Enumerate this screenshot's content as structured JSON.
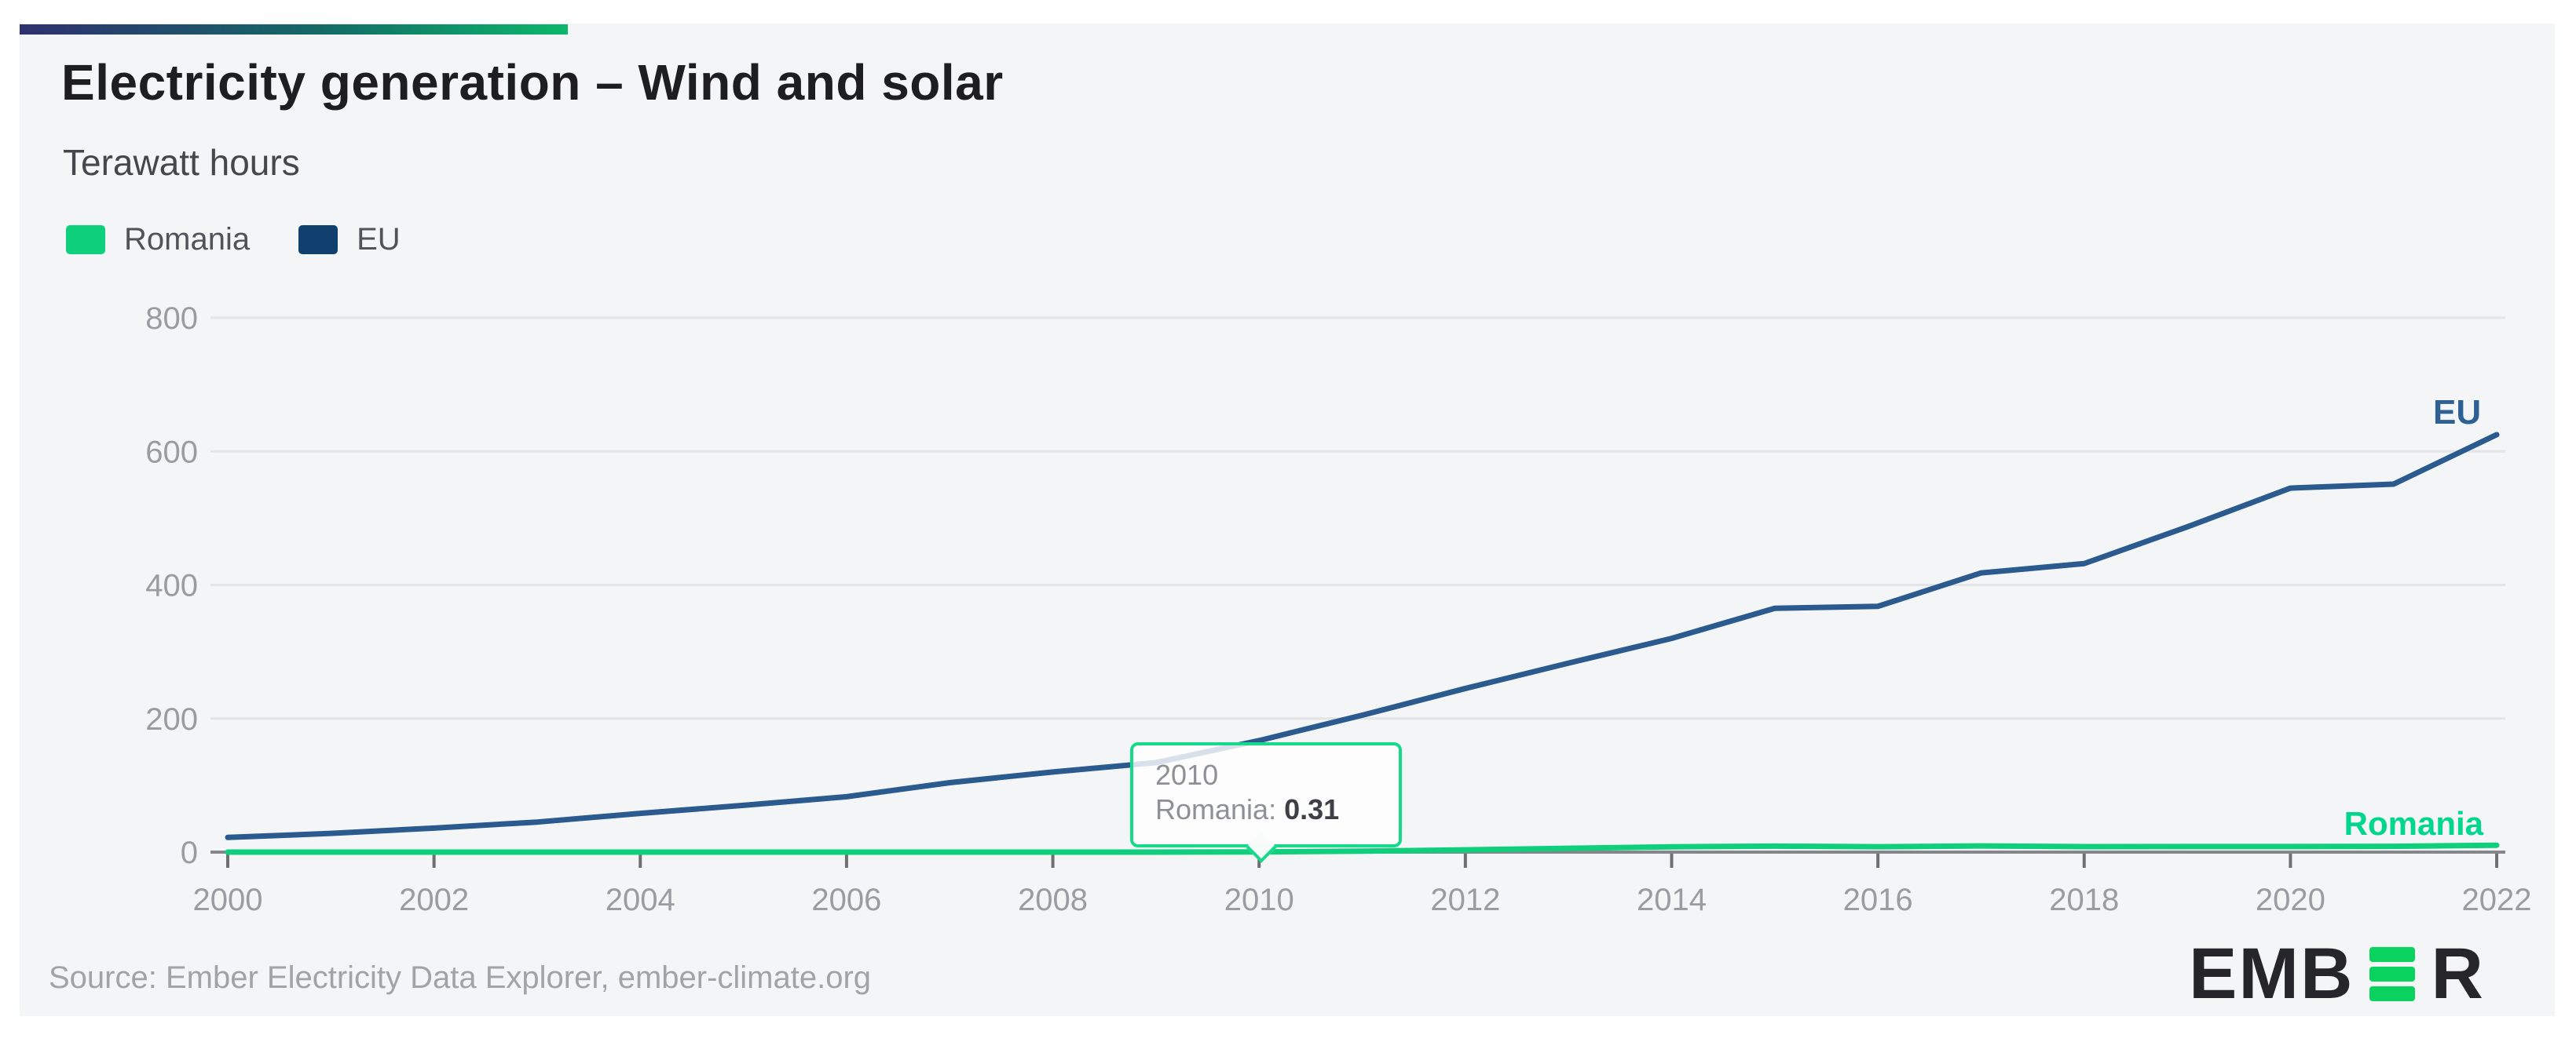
{
  "header": {
    "title": "Electricity generation – Wind and solar",
    "subtitle": "Terawatt hours"
  },
  "legend": [
    {
      "label": "Romania",
      "color": "#0fd17d"
    },
    {
      "label": "EU",
      "color": "#11406e"
    }
  ],
  "tooltip": {
    "year": "2010",
    "series_label": "Romania:",
    "value": "0.31"
  },
  "footer": {
    "source": "Source: Ember Electricity Data Explorer, ember-climate.org",
    "logo_prefix": "EMB",
    "logo_suffix": "R"
  },
  "colors": {
    "card_background": "#f4f5f6",
    "accent_gradient_start": "#2e3070",
    "accent_gradient_end": "#0cb76b",
    "romania_line": "#0fcf7c",
    "romania_label": "#00d68c",
    "eu_line": "#2a5a8e",
    "eu_label": "#2e6094",
    "tooltip_border": "#16d98a",
    "gridline": "#e3e4e6",
    "axis": "#85868a",
    "tick_label": "#9b9ba1",
    "logo_green": "#0ad25f"
  },
  "chart_data": {
    "type": "line",
    "title": "Electricity generation – Wind and solar",
    "xlabel": "",
    "ylabel": "Terawatt hours",
    "x": [
      2000,
      2001,
      2002,
      2003,
      2004,
      2005,
      2006,
      2007,
      2008,
      2009,
      2010,
      2011,
      2012,
      2013,
      2014,
      2015,
      2016,
      2017,
      2018,
      2019,
      2020,
      2021,
      2022
    ],
    "series": [
      {
        "name": "Romania",
        "color": "#0fcf7c",
        "label_color": "#00d68c",
        "values": [
          0,
          0,
          0,
          0,
          0,
          0,
          0,
          0,
          0.01,
          0.01,
          0.31,
          1.4,
          3.4,
          5.7,
          8,
          8.9,
          8.1,
          9.2,
          8.2,
          8.3,
          8.3,
          8.6,
          10.3
        ]
      },
      {
        "name": "EU",
        "color": "#2a5a8e",
        "label_color": "#2e6094",
        "values": [
          22,
          28,
          36,
          45,
          58,
          70,
          83,
          104,
          120,
          134,
          167,
          205,
          245,
          283,
          320,
          365,
          368,
          418,
          432,
          487,
          545,
          551,
          625
        ]
      }
    ],
    "ylim": [
      0,
      800
    ],
    "yticks": [
      0,
      200,
      400,
      600,
      800
    ],
    "xticks": [
      2000,
      2002,
      2004,
      2006,
      2008,
      2010,
      2012,
      2014,
      2016,
      2018,
      2020,
      2022
    ],
    "grid": true,
    "legend_position": "top-left",
    "end_labels": true,
    "annotation": {
      "x": 2010,
      "series": "Romania",
      "value": 0.31
    }
  }
}
